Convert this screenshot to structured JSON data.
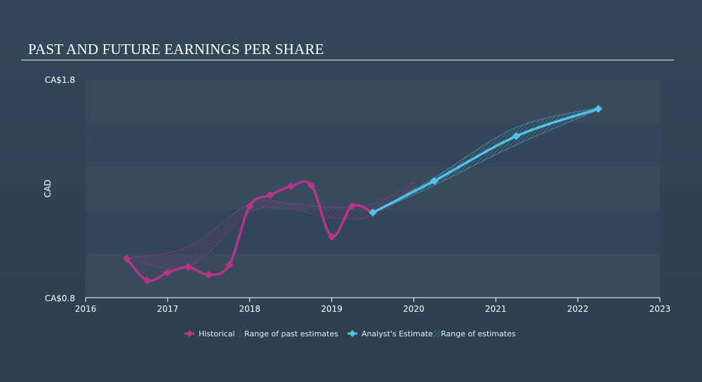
{
  "title": "PAST AND FUTURE EARNINGS PER SHARE",
  "chart_data": {
    "type": "line",
    "title": "PAST AND FUTURE EARNINGS PER SHARE",
    "ylabel": "CAD",
    "xlabel": "",
    "xlim": [
      2016,
      2023
    ],
    "ylim": [
      0.8,
      1.8
    ],
    "x_ticks": [
      "2016",
      "2017",
      "2018",
      "2019",
      "2020",
      "2021",
      "2022",
      "2023"
    ],
    "y_ticks": [
      {
        "value": 1.8,
        "label": "CA$1.8"
      },
      {
        "value": 0.8,
        "label": "CA$0.8"
      }
    ],
    "grid": "horizontal bands",
    "legend_position": "bottom-center",
    "series": [
      {
        "name": "Historical",
        "color": "#b6348a",
        "x": [
          2016.5,
          2016.75,
          2017.0,
          2017.25,
          2017.5,
          2017.75,
          2018.0,
          2018.25,
          2018.5,
          2018.75,
          2019.0,
          2019.25,
          2019.5
        ],
        "y": [
          0.98,
          0.88,
          0.915,
          0.94,
          0.905,
          0.95,
          1.22,
          1.27,
          1.31,
          1.315,
          1.08,
          1.22,
          1.19
        ]
      },
      {
        "name": "Analyst's Estimate",
        "color": "#4fc3e8",
        "x": [
          2019.5,
          2020.25,
          2021.25,
          2022.25
        ],
        "y": [
          1.19,
          1.335,
          1.54,
          1.665
        ]
      }
    ],
    "ranges": [
      {
        "name": "Range of past estimates",
        "color": "#b6348a",
        "x": [
          2016.5,
          2017.25,
          2018.0,
          2018.5,
          2019.0,
          2019.5,
          2020.0
        ],
        "upper": [
          0.98,
          1.035,
          1.23,
          1.23,
          1.215,
          1.23,
          1.33
        ],
        "lower": [
          0.98,
          0.94,
          1.19,
          1.205,
          1.165,
          1.175,
          1.3
        ]
      },
      {
        "name": "Range of estimates",
        "color": "#4fc3e8",
        "x": [
          2019.5,
          2020.25,
          2021.25,
          2022.25
        ],
        "upper": [
          1.19,
          1.35,
          1.58,
          1.67
        ],
        "lower": [
          1.19,
          1.315,
          1.5,
          1.66
        ]
      }
    ],
    "legend": [
      {
        "label": "Historical",
        "kind": "line",
        "color": "#b6348a"
      },
      {
        "label": "Range of past estimates",
        "kind": "hatch",
        "color": "#b6348a"
      },
      {
        "label": "Analyst's Estimate",
        "kind": "line",
        "color": "#4fc3e8"
      },
      {
        "label": "Range of estimates",
        "kind": "hatch",
        "color": "#4fc3e8"
      }
    ]
  }
}
